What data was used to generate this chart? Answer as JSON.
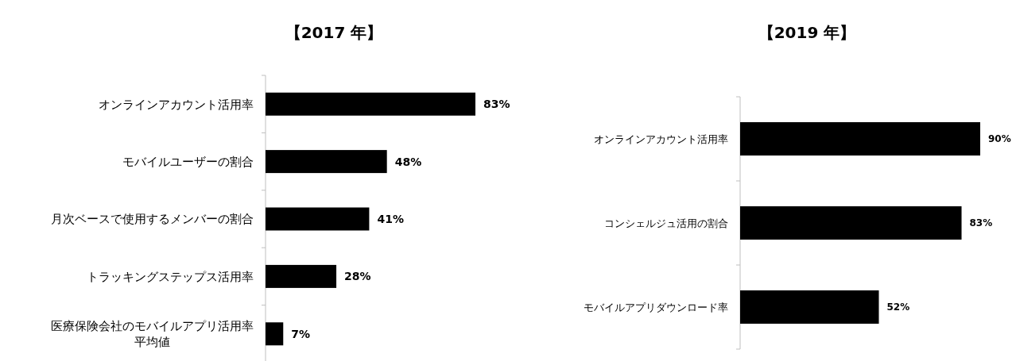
{
  "chart_data": [
    {
      "type": "bar",
      "orientation": "horizontal",
      "title": "【2017 年】",
      "categories": [
        "オンラインアカウント活用率",
        "モバイルユーザーの割合",
        "月次ベースで使用するメンバーの割合",
        "トラッキングステップス活用率",
        "医療保険会社のモバイルアプリ活用率平均値"
      ],
      "values": [
        83,
        48,
        41,
        28,
        7
      ],
      "value_labels": [
        "83%",
        "48%",
        "41%",
        "28%",
        "7%"
      ],
      "color": "#000000"
    },
    {
      "type": "bar",
      "orientation": "horizontal",
      "title": "【2019 年】",
      "categories": [
        "オンラインアカウント活用率",
        "コンシェルジュ活用の割合",
        "モバイルアプリダウンロード率"
      ],
      "values": [
        90,
        83,
        52
      ],
      "value_labels": [
        "90%",
        "83%",
        "52%"
      ],
      "color": "#000000"
    }
  ]
}
